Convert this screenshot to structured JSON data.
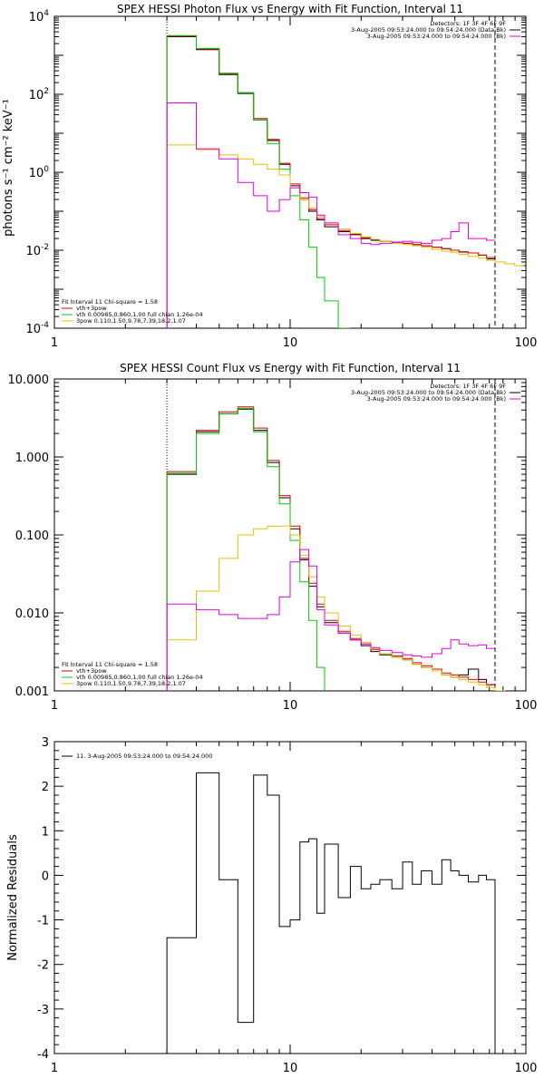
{
  "chart_data": [
    {
      "type": "line",
      "title": "SPEX HESSI Photon Flux vs Energy with Fit Function, Interval 11",
      "ylabel": "photons s⁻¹ cm⁻² keV⁻¹",
      "xlabel": "",
      "x_scale": "log",
      "y_scale": "log",
      "xlim": [
        1,
        100
      ],
      "ylim": [
        0.0001,
        10000
      ],
      "x_ticks": [
        {
          "v": 1,
          "label": "1"
        },
        {
          "v": 10,
          "label": "10"
        },
        {
          "v": 100,
          "label": "100"
        }
      ],
      "y_ticks": [
        {
          "v": 0.0001,
          "base": "10",
          "exp": "-4"
        },
        {
          "v": 0.01,
          "base": "10",
          "exp": "-2"
        },
        {
          "v": 1,
          "base": "10",
          "exp": "0"
        },
        {
          "v": 100,
          "base": "10",
          "exp": "2"
        },
        {
          "v": 10000,
          "base": "10",
          "exp": "4"
        }
      ],
      "vlines": [
        {
          "x": 3,
          "style": "dotted"
        },
        {
          "x": 74,
          "style": "dashed"
        }
      ],
      "legend_top": [
        "Detectors: 1F 3F 4F 6F 9F",
        "3-Aug-2005 09:53:24.000 to 09:54:24.000 (Data-Bk)",
        "3-Aug-2005 09:53:24.000 to 09:54:24.000 (Bk)"
      ],
      "legend_bottom": [
        {
          "text": "Fit Interval 11    Chi-square = 1.58",
          "color": ""
        },
        {
          "text": "vth+3pow",
          "color": "#e00000"
        },
        {
          "text": "vth 0.00985,0.860,1.00  full chian 1.26e-04",
          "color": "#00cc00"
        },
        {
          "text": "3pow 0.110,1.50,9.78,7.39,18.2,1.07",
          "color": "#e6c000"
        }
      ],
      "edges": [
        3,
        4,
        5,
        6,
        7,
        8,
        9,
        10,
        11,
        12,
        13,
        14,
        16,
        18,
        20,
        22,
        24,
        27,
        30,
        33,
        36,
        40,
        44,
        48,
        52,
        57,
        63,
        68,
        74
      ],
      "series": [
        {
          "name": "",
          "color": "#000000",
          "steps": true,
          "values": [
            3000,
            1400,
            320,
            105,
            22,
            6.5,
            1.6,
            0.45,
            0.2,
            0.1,
            0.06,
            0.04,
            0.03,
            0.025,
            0.02,
            0.018,
            0.017,
            0.016,
            0.015,
            0.014,
            0.013,
            0.012,
            0.011,
            0.01,
            0.009,
            0.0085,
            0.0075,
            0.006
          ]
        },
        {
          "name": "",
          "color": "#e00000",
          "steps": true,
          "values": [
            3100,
            1450,
            340,
            110,
            24,
            7,
            1.7,
            0.5,
            0.22,
            0.11,
            0.065,
            0.045,
            0.032,
            0.026,
            0.021,
            0.019,
            0.017,
            0.016,
            0.015,
            0.014,
            0.013,
            0.012,
            0.011,
            0.01,
            0.0092,
            0.0085,
            0.0075,
            0.0065
          ]
        },
        {
          "name": "",
          "color": "#00cc00",
          "steps": true,
          "values": [
            3200,
            1500,
            350,
            110,
            22,
            5.5,
            1.2,
            0.25,
            0.06,
            0.012,
            0.002,
            0.0005,
            0.0001
          ]
        },
        {
          "name": "",
          "color": "#e6c000",
          "steps": true,
          "values": [
            5,
            3.8,
            2.8,
            2.2,
            1.6,
            1.2,
            0.85,
            0.4,
            0.2,
            0.12,
            0.075,
            0.05,
            0.035,
            0.027,
            0.022,
            0.019,
            0.017,
            0.015,
            0.014,
            0.013,
            0.012,
            0.0105,
            0.0095,
            0.0088,
            0.0078,
            0.007,
            0.0062,
            0.0055,
            0.005,
            0.0045,
            0.004
          ]
        },
        {
          "name": "",
          "color": "#e000e0",
          "steps": true,
          "values": [
            60,
            4,
            2.2,
            0.55,
            0.25,
            0.1,
            0.2,
            0.4,
            0.3,
            0.23,
            0.08,
            0.05,
            0.025,
            0.02,
            0.015,
            0.014,
            0.015,
            0.016,
            0.017,
            0.016,
            0.015,
            0.018,
            0.02,
            0.03,
            0.05,
            0.02,
            0.02,
            0.018
          ]
        }
      ]
    },
    {
      "type": "line",
      "title": "SPEX HESSI Count Flux vs Energy with Fit Function, Interval 11",
      "ylabel": "",
      "xlabel": "",
      "x_scale": "log",
      "y_scale": "log",
      "xlim": [
        1,
        100
      ],
      "ylim": [
        0.001,
        10
      ],
      "x_ticks": [
        {
          "v": 1,
          "label": "1"
        },
        {
          "v": 10,
          "label": "10"
        },
        {
          "v": 100,
          "label": "100"
        }
      ],
      "y_ticks": [
        {
          "v": 0.001,
          "label": "0.001"
        },
        {
          "v": 0.01,
          "label": "0.010"
        },
        {
          "v": 0.1,
          "label": "0.100"
        },
        {
          "v": 1,
          "label": "1.000"
        },
        {
          "v": 10,
          "label": "10.000"
        }
      ],
      "vlines": [
        {
          "x": 3,
          "style": "dotted"
        },
        {
          "x": 74,
          "style": "dashed"
        }
      ],
      "legend_top": [
        "Detectors: 1F 3F 4F 6F 9F",
        "3-Aug-2005 09:53:24.000 to 09:54:24.000 (Data-Bk)",
        "3-Aug-2005 09:53:24.000 to 09:54:24.000 (Bk)"
      ],
      "legend_bottom": [
        {
          "text": "Fit Interval 11    Chi-square = 1.58",
          "color": ""
        },
        {
          "text": "vth+3pow",
          "color": "#e00000"
        },
        {
          "text": "vth 0.00985,0.860,1.00  full chian 1.26e-04",
          "color": "#00cc00"
        },
        {
          "text": "3pow 0.110,1.50,9.78,7.39,18.2,1.07",
          "color": "#e6c000"
        }
      ],
      "edges": [
        3,
        4,
        5,
        6,
        7,
        8,
        9,
        10,
        11,
        12,
        13,
        14,
        16,
        18,
        20,
        22,
        24,
        27,
        30,
        33,
        36,
        40,
        44,
        48,
        52,
        57,
        63,
        68,
        74
      ],
      "series": [
        {
          "name": "",
          "color": "#000000",
          "steps": true,
          "values": [
            0.6,
            2.1,
            3.6,
            4.1,
            2.2,
            0.85,
            0.3,
            0.12,
            0.048,
            0.022,
            0.012,
            0.0075,
            0.0055,
            0.0045,
            0.0038,
            0.0032,
            0.0029,
            0.0027,
            0.0025,
            0.0022,
            0.002,
            0.0018,
            0.0016,
            0.0015,
            0.0016,
            0.0019,
            0.0014,
            0.0012
          ]
        },
        {
          "name": "",
          "color": "#e00000",
          "steps": true,
          "values": [
            0.65,
            2.2,
            3.8,
            4.4,
            2.35,
            0.9,
            0.32,
            0.13,
            0.05,
            0.024,
            0.013,
            0.008,
            0.0058,
            0.0047,
            0.004,
            0.0034,
            0.003,
            0.0028,
            0.0026,
            0.0023,
            0.0021,
            0.0019,
            0.0017,
            0.0016,
            0.0015,
            0.0014,
            0.0013,
            0.0012
          ]
        },
        {
          "name": "",
          "color": "#00cc00",
          "steps": true,
          "values": [
            0.62,
            2.0,
            3.6,
            4.2,
            2.1,
            0.75,
            0.25,
            0.085,
            0.025,
            0.008,
            0.002,
            0.0008
          ]
        },
        {
          "name": "",
          "color": "#e6c000",
          "steps": true,
          "values": [
            0.0045,
            0.019,
            0.05,
            0.1,
            0.12,
            0.13,
            0.13,
            0.1,
            0.055,
            0.029,
            0.016,
            0.01,
            0.0068,
            0.0052,
            0.0042,
            0.0035,
            0.003,
            0.0027,
            0.0025,
            0.0022,
            0.002,
            0.0018,
            0.0016,
            0.0015,
            0.0014,
            0.0013,
            0.0012,
            0.0011,
            0.001,
            0.0009
          ]
        },
        {
          "name": "",
          "color": "#e000e0",
          "steps": true,
          "values": [
            0.013,
            0.011,
            0.0095,
            0.0085,
            0.0085,
            0.0095,
            0.016,
            0.045,
            0.065,
            0.04,
            0.011,
            0.007,
            0.0055,
            0.0045,
            0.004,
            0.0036,
            0.0033,
            0.0031,
            0.0029,
            0.0028,
            0.0027,
            0.003,
            0.0035,
            0.0045,
            0.004,
            0.0038,
            0.0039,
            0.0035
          ]
        }
      ]
    },
    {
      "type": "line",
      "title": "",
      "ylabel": "Normalized Residuals",
      "xlabel": "",
      "x_scale": "log",
      "y_scale": "linear",
      "xlim": [
        1,
        100
      ],
      "ylim": [
        -4,
        3
      ],
      "x_ticks": [
        {
          "v": 1,
          "label": "1"
        },
        {
          "v": 10,
          "label": "10"
        },
        {
          "v": 100,
          "label": "100"
        }
      ],
      "y_ticks": [
        {
          "v": -4,
          "label": "-4"
        },
        {
          "v": -3,
          "label": "-3"
        },
        {
          "v": -2,
          "label": "-2"
        },
        {
          "v": -1,
          "label": "-1"
        },
        {
          "v": 0,
          "label": "0"
        },
        {
          "v": 1,
          "label": "1"
        },
        {
          "v": 2,
          "label": "2"
        },
        {
          "v": 3,
          "label": "3"
        }
      ],
      "vlines": [],
      "legend_top": [],
      "legend_bottom": [],
      "legend_series": "11.  3-Aug-2005 09:53:24.000 to 09:54:24.000",
      "edges": [
        3,
        4,
        5,
        6,
        7,
        8,
        9,
        10,
        11,
        12,
        13,
        14,
        16,
        18,
        20,
        22,
        24,
        27,
        30,
        33,
        36,
        40,
        44,
        48,
        52,
        57,
        63,
        68,
        74
      ],
      "series": [
        {
          "name": "",
          "color": "#000000",
          "steps": true,
          "values": [
            -1.4,
            2.3,
            -0.1,
            -3.3,
            2.25,
            1.8,
            -1.15,
            -1.0,
            0.75,
            0.82,
            -0.85,
            0.7,
            -0.5,
            0.2,
            -0.3,
            -0.2,
            -0.1,
            -0.3,
            0.3,
            -0.2,
            0.1,
            -0.2,
            0.35,
            0.1,
            0.0,
            -0.15,
            0.0,
            -0.1
          ]
        }
      ]
    }
  ]
}
